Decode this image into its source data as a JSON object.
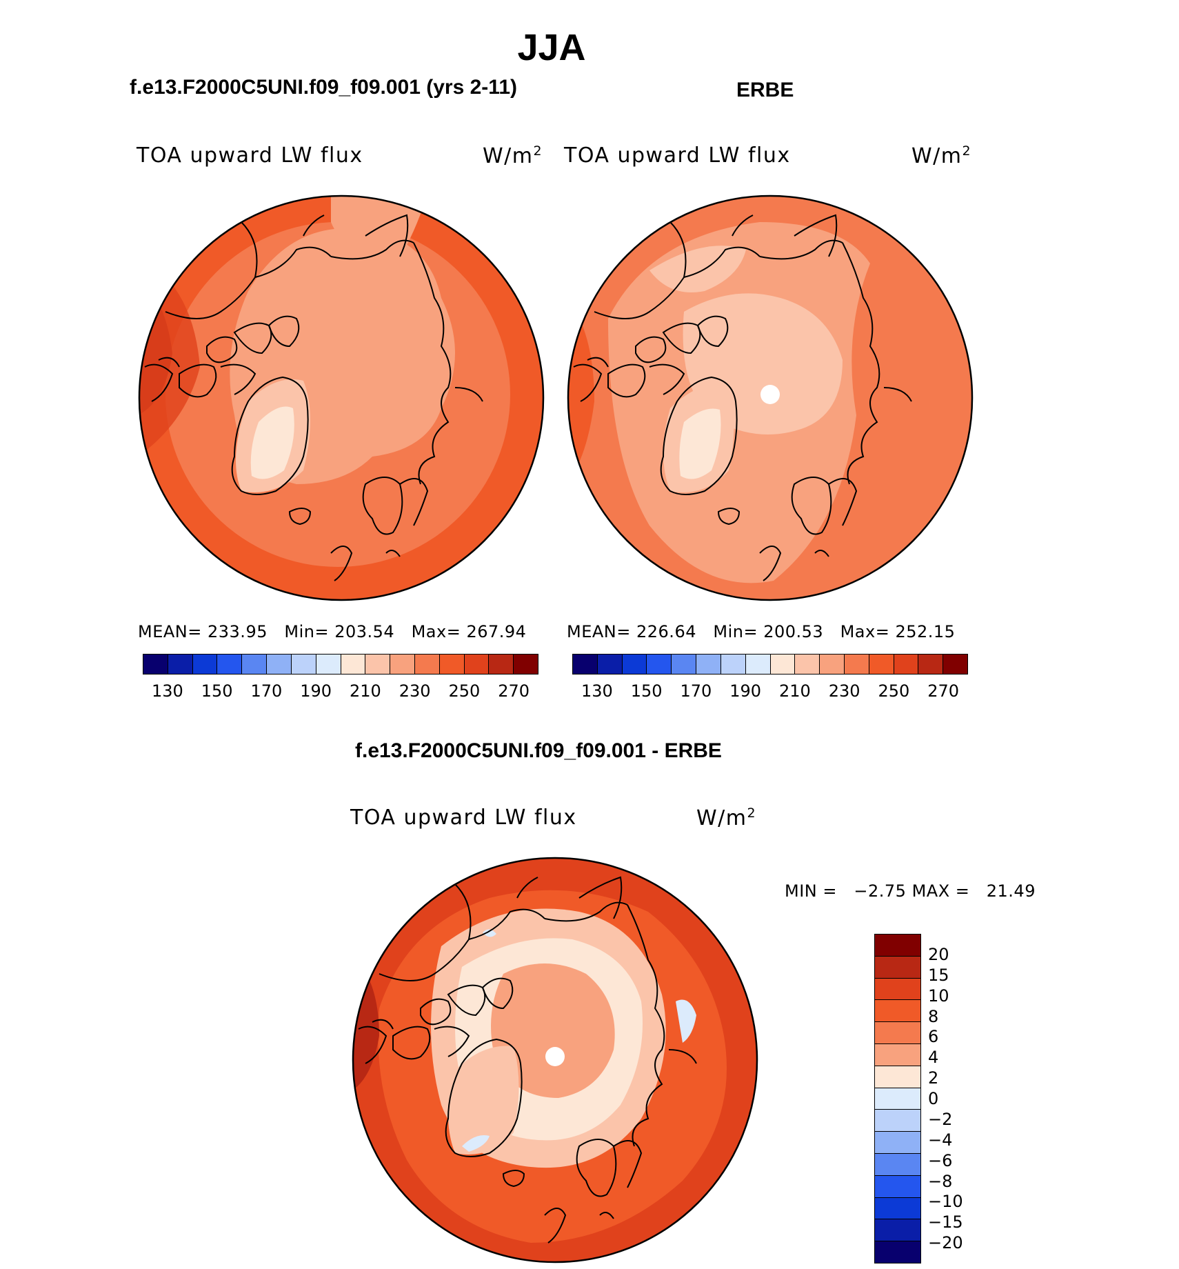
{
  "figure": {
    "title": "JJA",
    "diff_title": "f.e13.F2000C5UNI.f09_f09.001 - ERBE"
  },
  "chart_data": [
    {
      "type": "heatmap",
      "projection": "north polar stereographic",
      "title": "f.e13.F2000C5UNI.f09_f09.001 (yrs 2-11)",
      "left_label": "TOA upward LW flux",
      "units_base": "W/m",
      "units_exp": "2",
      "stats": {
        "mean_label": "MEAN=",
        "mean": "233.95",
        "min_label": "Min=",
        "min": "203.54",
        "max_label": "Max=",
        "max": "267.94"
      },
      "levels": [
        130,
        140,
        150,
        160,
        170,
        180,
        190,
        200,
        210,
        220,
        230,
        240,
        250,
        260,
        270
      ],
      "colorbar_ticks": [
        "130",
        "150",
        "170",
        "190",
        "210",
        "230",
        "250",
        "270"
      ],
      "colors": [
        "#08006e",
        "#0a1ea8",
        "#0c3ad6",
        "#2456ee",
        "#5a86f2",
        "#8fb1f6",
        "#bcd2fa",
        "#dcebfc",
        "#fde7d6",
        "#fbc4aa",
        "#f8a27e",
        "#f47a4e",
        "#f05a28",
        "#e0421c",
        "#b82814",
        "#800000"
      ],
      "field_ranges": {
        "land_high_lat": "210-230",
        "greenland_interior": "200-220",
        "subarctic": "230-250",
        "lowest_latitudes": "250-270"
      }
    },
    {
      "type": "heatmap",
      "projection": "north polar stereographic",
      "title": "ERBE",
      "left_label": "TOA upward LW flux",
      "units_base": "W/m",
      "units_exp": "2",
      "stats": {
        "mean_label": "MEAN=",
        "mean": "226.64",
        "min_label": "Min=",
        "min": "200.53",
        "max_label": "Max=",
        "max": "252.15"
      },
      "levels": [
        130,
        140,
        150,
        160,
        170,
        180,
        190,
        200,
        210,
        220,
        230,
        240,
        250,
        260,
        270
      ],
      "colorbar_ticks": [
        "130",
        "150",
        "170",
        "190",
        "210",
        "230",
        "250",
        "270"
      ],
      "colors": [
        "#08006e",
        "#0a1ea8",
        "#0c3ad6",
        "#2456ee",
        "#5a86f2",
        "#8fb1f6",
        "#bcd2fa",
        "#dcebfc",
        "#fde7d6",
        "#fbc4aa",
        "#f8a27e",
        "#f47a4e",
        "#f05a28",
        "#e0421c",
        "#b82814",
        "#800000"
      ],
      "field_ranges": {
        "central_arctic": "200-220",
        "greenland_interior": "200-210",
        "subarctic": "220-240",
        "lowest_latitudes": "240-250"
      }
    },
    {
      "type": "heatmap",
      "projection": "north polar stereographic",
      "title": "f.e13.F2000C5UNI.f09_f09.001 - ERBE",
      "left_label": "TOA upward LW flux",
      "units_base": "W/m",
      "units_exp": "2",
      "stats": {
        "min_label": "MIN =",
        "min": "−2.75",
        "max_label": "MAX =",
        "max": "21.49"
      },
      "levels": [
        -20,
        -15,
        -10,
        -8,
        -6,
        -4,
        -2,
        0,
        2,
        4,
        6,
        8,
        10,
        15,
        20
      ],
      "colorbar_ticks": [
        "20",
        "15",
        "10",
        "8",
        "6",
        "4",
        "2",
        "0",
        "−2",
        "−4",
        "−6",
        "−8",
        "−10",
        "−15",
        "−20"
      ],
      "colors_top_to_bottom": [
        "#800000",
        "#b82814",
        "#e0421c",
        "#f05a28",
        "#f47a4e",
        "#f8a27e",
        "#fde7d6",
        "#dcebfc",
        "#bcd2fa",
        "#8fb1f6",
        "#5a86f2",
        "#2456ee",
        "#0c3ad6",
        "#0a1ea8",
        "#08006e"
      ],
      "field_ranges": {
        "central_arctic": "4-8",
        "arctic_coasts": "0-4",
        "greenland": "-2-2",
        "subarctic": "8-15",
        "north_atlantic_hotspot": "15-20"
      }
    }
  ]
}
